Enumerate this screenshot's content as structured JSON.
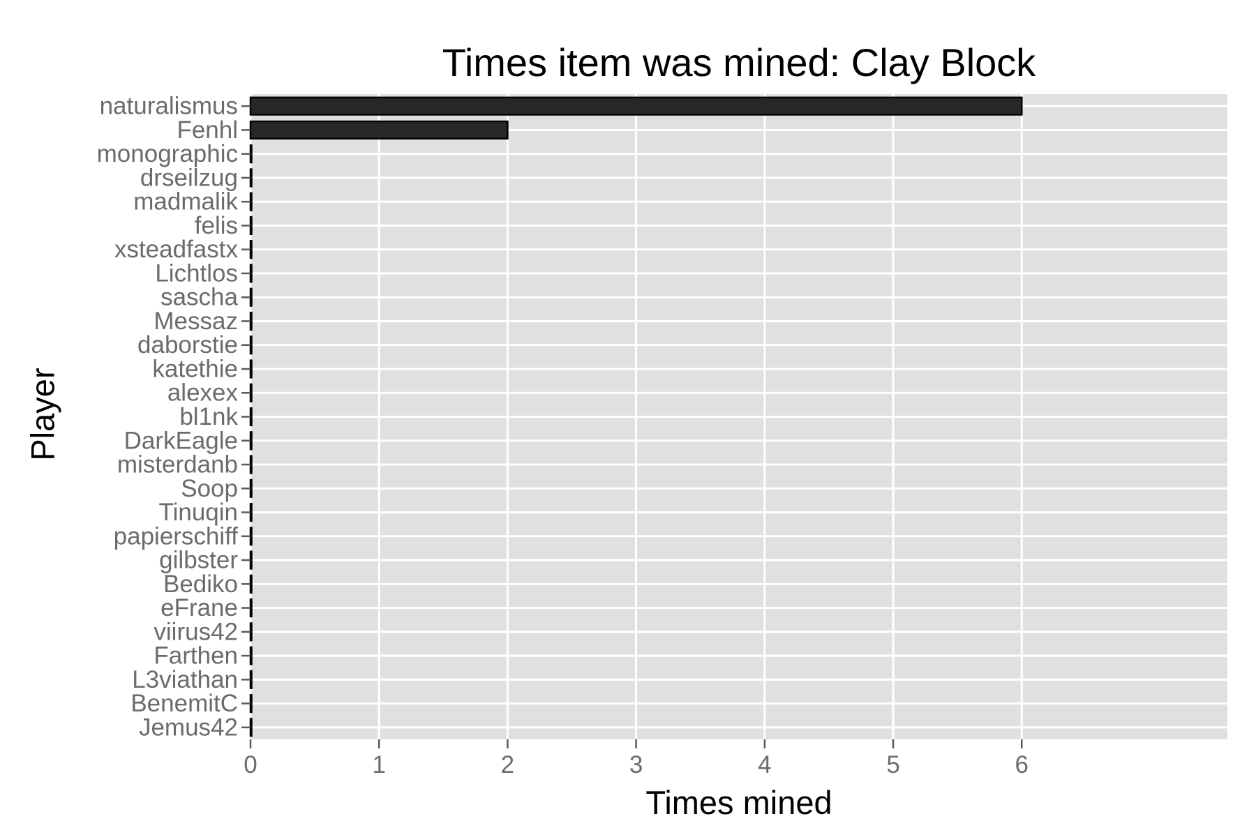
{
  "chart_data": {
    "type": "bar",
    "orientation": "horizontal",
    "title": "Times item was mined: Clay Block",
    "xlabel": "Times mined",
    "ylabel": "Player",
    "categories": [
      "naturalismus",
      "Fenhl",
      "monographic",
      "drseilzug",
      "madmalik",
      "felis",
      "xsteadfastx",
      "Lichtlos",
      "sascha",
      "Messaz",
      "daborstie",
      "katethie",
      "alexex",
      "bl1nk",
      "DarkEagle",
      "misterdanb",
      "Soop",
      "Tinuqin",
      "papierschiff",
      "gilbster",
      "Bediko",
      "eFrane",
      "viirus42",
      "Farthen",
      "L3viathan",
      "BenemitC",
      "Jemus42"
    ],
    "values": [
      6,
      2,
      0,
      0,
      0,
      0,
      0,
      0,
      0,
      0,
      0,
      0,
      0,
      0,
      0,
      0,
      0,
      0,
      0,
      0,
      0,
      0,
      0,
      0,
      0,
      0,
      0
    ],
    "xlim": [
      0,
      7.6
    ],
    "xticks": [
      0,
      1,
      2,
      3,
      4,
      5,
      6
    ],
    "grid": true,
    "legend": "none",
    "colors": {
      "panel": "#e0e0e0",
      "grid": "#ffffff",
      "bar_fill": "#282828",
      "bar_stroke": "#000000",
      "tick_label": "#6b6b6b",
      "text": "#000000"
    }
  }
}
